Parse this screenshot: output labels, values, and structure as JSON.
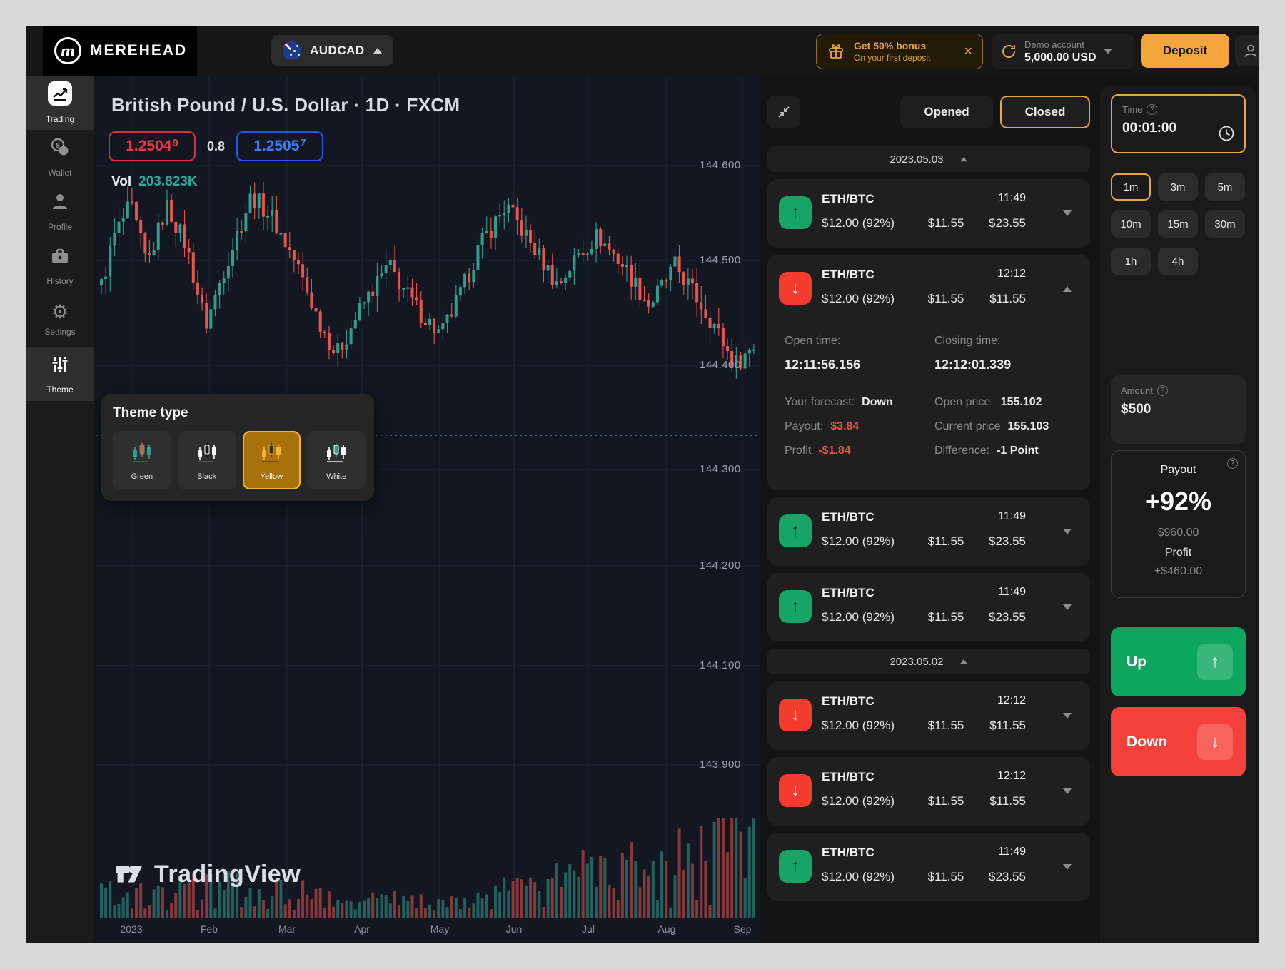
{
  "topbar": {
    "brand": "MEREHEAD",
    "pair_selector": {
      "label": "AUDCAD",
      "flag": "australia-flag"
    },
    "bonus": {
      "title": "Get 50% bonus",
      "subtitle": "On your first deposit",
      "close_icon": "close-icon"
    },
    "account": {
      "type": "Demo account",
      "balance": "5,000.00 USD"
    },
    "deposit_label": "Deposit"
  },
  "sidebar": {
    "items": [
      {
        "label": "Trading",
        "icon": "trading-icon",
        "active": true
      },
      {
        "label": "Wallet",
        "icon": "wallet-icon",
        "active": false
      },
      {
        "label": "Profile",
        "icon": "profile-icon",
        "active": false
      },
      {
        "label": "History",
        "icon": "history-icon",
        "active": false
      },
      {
        "label": "Settings",
        "icon": "settings-icon",
        "active": false
      },
      {
        "label": "Theme",
        "icon": "theme-icon",
        "active": true
      }
    ]
  },
  "chart": {
    "title": "British Pound / U.S. Dollar · 1D · FXCM",
    "bid": "1.25049",
    "spread": "0.8",
    "ask": "1.25057",
    "vol_label": "Vol",
    "vol_value": "203.823K",
    "watermark": "TradingView",
    "price_axis": [
      "144.600",
      "144.500",
      "144.400",
      "144.300",
      "144.200",
      "144.100",
      "143.900"
    ],
    "time_axis": [
      "2023",
      "Feb",
      "Mar",
      "Apr",
      "May",
      "Jun",
      "Jul",
      "Aug",
      "Sep"
    ]
  },
  "chart_data": {
    "type": "candlestick",
    "title": "British Pound / U.S. Dollar · 1D · FXCM",
    "y_axis_labels": [
      144.6,
      144.5,
      144.4,
      144.3,
      144.2,
      144.1,
      143.9
    ],
    "x_axis_labels": [
      "2023",
      "Feb",
      "Mar",
      "Apr",
      "May",
      "Jun",
      "Jul",
      "Aug",
      "Sep"
    ],
    "current_price_line": 144.33,
    "candle_count": 150,
    "colors": {
      "up": "#2f9e8f",
      "down": "#e8554e"
    },
    "close_waypoints": [
      [
        0.0,
        144.48
      ],
      [
        0.02,
        144.53
      ],
      [
        0.045,
        144.56
      ],
      [
        0.07,
        144.5
      ],
      [
        0.1,
        144.56
      ],
      [
        0.13,
        144.52
      ],
      [
        0.16,
        144.44
      ],
      [
        0.19,
        144.5
      ],
      [
        0.23,
        144.57
      ],
      [
        0.26,
        144.55
      ],
      [
        0.3,
        144.5
      ],
      [
        0.33,
        144.45
      ],
      [
        0.36,
        144.41
      ],
      [
        0.4,
        144.46
      ],
      [
        0.44,
        144.5
      ],
      [
        0.48,
        144.46
      ],
      [
        0.52,
        144.43
      ],
      [
        0.55,
        144.47
      ],
      [
        0.58,
        144.52
      ],
      [
        0.62,
        144.56
      ],
      [
        0.66,
        144.52
      ],
      [
        0.7,
        144.48
      ],
      [
        0.73,
        144.51
      ],
      [
        0.76,
        144.53
      ],
      [
        0.8,
        144.5
      ],
      [
        0.84,
        144.46
      ],
      [
        0.88,
        144.5
      ],
      [
        0.91,
        144.47
      ],
      [
        0.94,
        144.44
      ],
      [
        0.97,
        144.4
      ],
      [
        1.0,
        144.42
      ]
    ]
  },
  "theme_popup": {
    "title": "Theme type",
    "options": [
      {
        "label": "Green",
        "selected": false,
        "c1": "#2f9e8f",
        "c2": "#e8554e",
        "c3": "#1d6e54"
      },
      {
        "label": "Black",
        "selected": false,
        "c1": "#ffffff",
        "c2": "#111111",
        "c3": "#555555"
      },
      {
        "label": "Yellow",
        "selected": true,
        "c1": "#f3b23e",
        "c2": "#3a2c09",
        "c3": "#6b4e0e"
      },
      {
        "label": "White",
        "selected": false,
        "c1": "#ffffff",
        "c2": "#2f9e8f",
        "c3": "#bbbbbb"
      }
    ]
  },
  "trades": {
    "tabs": [
      {
        "label": "Opened",
        "active": false
      },
      {
        "label": "Closed",
        "active": true
      }
    ],
    "sections": [
      {
        "date": "2023.05.03",
        "rows": [
          {
            "pair": "ETH/BTC",
            "direction": "up",
            "time": "11:49",
            "amount": "$12.00 (92%)",
            "value1": "$11.55",
            "value2": "$23.55",
            "expanded": false
          },
          {
            "pair": "ETH/BTC",
            "direction": "down",
            "time": "12:12",
            "amount": "$12.00 (92%)",
            "value1": "$11.55",
            "value2": "$11.55",
            "expanded": true,
            "details": {
              "open_time_label": "Open time:",
              "open_time": "12:11:56.156",
              "closing_time_label": "Closing time:",
              "closing_time": "12:12:01.339",
              "forecast_label": "Your forecast:",
              "forecast": "Down",
              "payout_label": "Payout:",
              "payout": "$3.84",
              "profit_label": "Profit",
              "profit": "-$1.84",
              "open_price_label": "Open price:",
              "open_price": "155.102",
              "current_price_label": "Current price",
              "current_price": "155.103",
              "difference_label": "Difference:",
              "difference": "-1 Point"
            }
          },
          {
            "pair": "ETH/BTC",
            "direction": "up",
            "time": "11:49",
            "amount": "$12.00 (92%)",
            "value1": "$11.55",
            "value2": "$23.55",
            "expanded": false
          },
          {
            "pair": "ETH/BTC",
            "direction": "up",
            "time": "11:49",
            "amount": "$12.00 (92%)",
            "value1": "$11.55",
            "value2": "$23.55",
            "expanded": false
          }
        ]
      },
      {
        "date": "2023.05.02",
        "rows": [
          {
            "pair": "ETH/BTC",
            "direction": "down",
            "time": "12:12",
            "amount": "$12.00 (92%)",
            "value1": "$11.55",
            "value2": "$11.55",
            "expanded": false
          },
          {
            "pair": "ETH/BTC",
            "direction": "down",
            "time": "12:12",
            "amount": "$12.00 (92%)",
            "value1": "$11.55",
            "value2": "$11.55",
            "expanded": false
          },
          {
            "pair": "ETH/BTC",
            "direction": "up",
            "time": "11:49",
            "amount": "$12.00 (92%)",
            "value1": "$11.55",
            "value2": "$23.55",
            "expanded": false
          }
        ]
      }
    ]
  },
  "controls": {
    "time": {
      "label": "Time",
      "value": "00:01:00"
    },
    "timeframes": [
      {
        "label": "1m",
        "active": true
      },
      {
        "label": "3m",
        "active": false
      },
      {
        "label": "5m",
        "active": false
      },
      {
        "label": "10m",
        "active": false
      },
      {
        "label": "15m",
        "active": false
      },
      {
        "label": "30m",
        "active": false
      },
      {
        "label": "1h",
        "active": false
      },
      {
        "label": "4h",
        "active": false
      }
    ],
    "amount": {
      "label": "Amount",
      "value": "$500"
    },
    "payout": {
      "label": "Payout",
      "percent": "+92%",
      "total": "$960.00",
      "profit_label": "Profit",
      "profit": "+$460.00"
    },
    "up_label": "Up",
    "down_label": "Down"
  }
}
